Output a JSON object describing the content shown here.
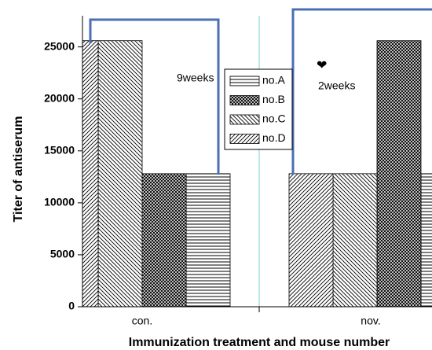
{
  "chart_data": {
    "type": "bar",
    "xlabel": "Immunization treatment and mouse number",
    "ylabel": "Titer of antiserum",
    "categories": [
      "con.",
      "nov."
    ],
    "series": [
      {
        "name": "no.A",
        "pattern": "horizontal",
        "values": [
          12800,
          12800
        ]
      },
      {
        "name": "no.B",
        "pattern": "crosshatch",
        "values": [
          12800,
          25600
        ]
      },
      {
        "name": "no.C",
        "pattern": "backslash",
        "values": [
          25600,
          12800
        ]
      },
      {
        "name": "no.D",
        "pattern": "slash",
        "values": [
          25600,
          12800
        ]
      }
    ],
    "ylim": [
      0,
      28000
    ],
    "yticks": [
      0,
      5000,
      10000,
      15000,
      20000,
      25000
    ],
    "annotations": [
      "9weeks",
      "2weeks",
      "❤"
    ]
  }
}
